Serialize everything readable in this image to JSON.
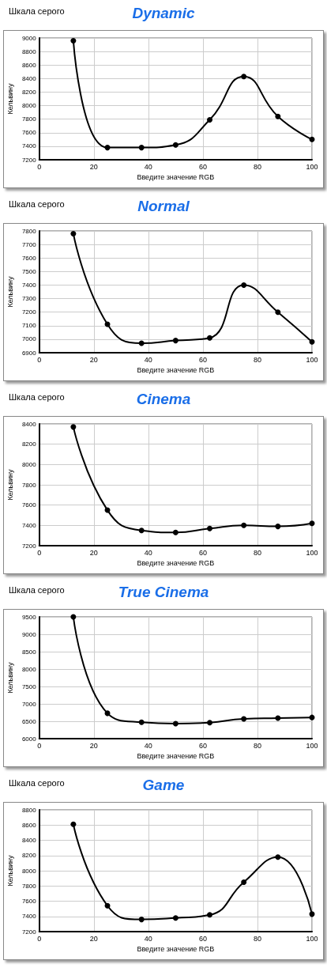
{
  "chart_data": [
    {
      "type": "line",
      "subtitle": "Шкала серого",
      "title": "Dynamic",
      "xlabel": "Введите значение RGB",
      "ylabel": "Кельвину",
      "x": [
        12.5,
        25,
        37.5,
        50,
        62.5,
        75,
        87.5,
        100
      ],
      "series": [
        {
          "color": "#000000",
          "values": [
            8960,
            7380,
            7380,
            7420,
            7790,
            8430,
            7840,
            7500
          ]
        }
      ],
      "xlim": [
        0,
        100
      ],
      "xticks": [
        0,
        20,
        40,
        60,
        80,
        100
      ],
      "ylim": [
        7200,
        9000
      ],
      "yticks": [
        7200,
        7400,
        7600,
        7800,
        8000,
        8200,
        8400,
        8600,
        8800,
        9000
      ],
      "grid": true,
      "marker": "circle",
      "line_style": "solid"
    },
    {
      "type": "line",
      "subtitle": "Шкала серого",
      "title": "Normal",
      "xlabel": "Введите значение RGB",
      "ylabel": "Кельвину",
      "x": [
        12.5,
        25,
        37.5,
        50,
        62.5,
        75,
        87.5,
        100
      ],
      "series": [
        {
          "color": "#000000",
          "values": [
            7780,
            7110,
            6970,
            6990,
            7010,
            7400,
            7200,
            6980
          ]
        }
      ],
      "xlim": [
        0,
        100
      ],
      "xticks": [
        0,
        20,
        40,
        60,
        80,
        100
      ],
      "ylim": [
        6900,
        7800
      ],
      "yticks": [
        6900,
        7000,
        7100,
        7200,
        7300,
        7400,
        7500,
        7600,
        7700,
        7800
      ],
      "grid": true,
      "marker": "circle",
      "line_style": "solid"
    },
    {
      "type": "line",
      "subtitle": "Шкала серого",
      "title": "Cinema",
      "xlabel": "Введите значение RGB",
      "ylabel": "Кельвину",
      "x": [
        12.5,
        25,
        37.5,
        50,
        62.5,
        75,
        87.5,
        100
      ],
      "series": [
        {
          "color": "#000000",
          "values": [
            8370,
            7550,
            7350,
            7330,
            7370,
            7400,
            7390,
            7420
          ]
        }
      ],
      "xlim": [
        0,
        100
      ],
      "xticks": [
        0,
        20,
        40,
        60,
        80,
        100
      ],
      "ylim": [
        7200,
        8400
      ],
      "yticks": [
        7200,
        7400,
        7600,
        7800,
        8000,
        8200,
        8400
      ],
      "grid": true,
      "marker": "circle",
      "line_style": "solid"
    },
    {
      "type": "line",
      "subtitle": "Шкала серого",
      "title": "True Cinema",
      "xlabel": "Введите значение RGB",
      "ylabel": "Кельвину",
      "x": [
        12.5,
        25,
        37.5,
        50,
        62.5,
        75,
        87.5,
        100
      ],
      "series": [
        {
          "color": "#000000",
          "values": [
            9500,
            6730,
            6470,
            6430,
            6460,
            6570,
            6590,
            6610
          ]
        }
      ],
      "xlim": [
        0,
        100
      ],
      "xticks": [
        0,
        20,
        40,
        60,
        80,
        100
      ],
      "ylim": [
        6000,
        9500
      ],
      "yticks": [
        6000,
        6500,
        7000,
        7500,
        8000,
        8500,
        9000,
        9500
      ],
      "grid": true,
      "marker": "circle",
      "line_style": "solid"
    },
    {
      "type": "line",
      "subtitle": "Шкала серого",
      "title": "Game",
      "xlabel": "Введите значение RGB",
      "ylabel": "Кельвину",
      "x": [
        12.5,
        25,
        37.5,
        50,
        62.5,
        75,
        87.5,
        100
      ],
      "series": [
        {
          "color": "#000000",
          "values": [
            8610,
            7540,
            7360,
            7380,
            7420,
            7850,
            8180,
            7430
          ]
        }
      ],
      "xlim": [
        0,
        100
      ],
      "xticks": [
        0,
        20,
        40,
        60,
        80,
        100
      ],
      "ylim": [
        7200,
        8800
      ],
      "yticks": [
        7200,
        7400,
        7600,
        7800,
        8000,
        8200,
        8400,
        8600,
        8800
      ],
      "grid": true,
      "marker": "circle",
      "line_style": "solid"
    }
  ]
}
